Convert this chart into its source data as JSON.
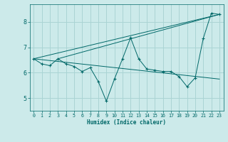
{
  "title": "",
  "xlabel": "Humidex (Indice chaleur)",
  "background_color": "#cceaea",
  "grid_color": "#aad4d4",
  "line_color": "#006868",
  "xlim": [
    -0.5,
    23.5
  ],
  "ylim": [
    4.5,
    8.7
  ],
  "yticks": [
    5,
    6,
    7,
    8
  ],
  "xticks": [
    0,
    1,
    2,
    3,
    4,
    5,
    6,
    7,
    8,
    9,
    10,
    11,
    12,
    13,
    14,
    15,
    16,
    17,
    18,
    19,
    20,
    21,
    22,
    23
  ],
  "series": [
    [
      0,
      6.55
    ],
    [
      1,
      6.35
    ],
    [
      2,
      6.28
    ],
    [
      3,
      6.55
    ],
    [
      4,
      6.35
    ],
    [
      5,
      6.25
    ],
    [
      6,
      6.05
    ],
    [
      7,
      6.2
    ],
    [
      8,
      5.65
    ],
    [
      9,
      4.88
    ],
    [
      10,
      5.75
    ],
    [
      11,
      6.55
    ],
    [
      12,
      7.38
    ],
    [
      13,
      6.55
    ],
    [
      14,
      6.15
    ],
    [
      15,
      6.1
    ],
    [
      16,
      6.05
    ],
    [
      17,
      6.05
    ],
    [
      18,
      5.85
    ],
    [
      19,
      5.45
    ],
    [
      20,
      5.8
    ],
    [
      21,
      7.35
    ],
    [
      22,
      8.35
    ],
    [
      23,
      8.3
    ]
  ],
  "line1": [
    [
      0,
      6.55
    ],
    [
      23,
      8.3
    ]
  ],
  "line2": [
    [
      3,
      6.55
    ],
    [
      23,
      8.3
    ]
  ],
  "line3": [
    [
      0,
      6.55
    ],
    [
      23,
      5.75
    ]
  ]
}
